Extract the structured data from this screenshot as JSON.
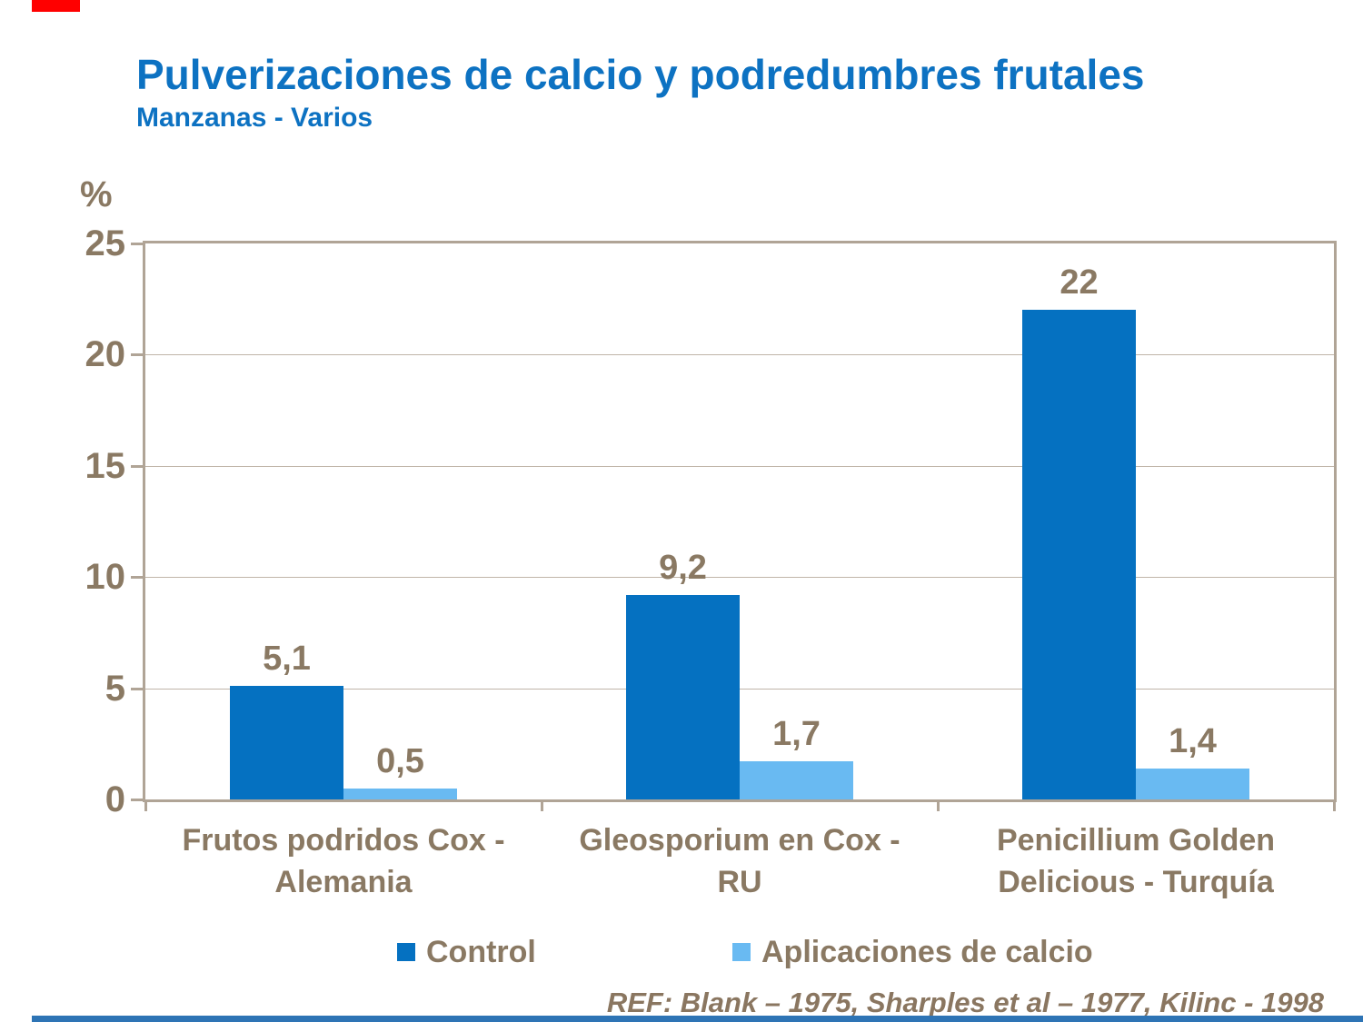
{
  "slide": {
    "title": "Pulverizaciones de calcio y podredumbres frutales",
    "subtitle": "Manzanas - Varios",
    "reference": "REF: Blank – 1975, Sharples et al – 1977, Kilinc - 1998"
  },
  "accents": {
    "top_bar_color": "#ff0000",
    "bottom_bar_color": "#2e74b5"
  },
  "chart_data": {
    "type": "bar",
    "title": "Pulverizaciones de calcio y podredumbres frutales",
    "subtitle": "Manzanas - Varios",
    "ylabel": "%",
    "xlabel": "",
    "ylim": [
      0,
      25
    ],
    "yticks": [
      0,
      5,
      10,
      15,
      20,
      25
    ],
    "grid": true,
    "legend_position": "bottom",
    "axis_text_color": "#8a7963",
    "axis_line_color": "#b0a496",
    "categories": [
      {
        "line1": "Frutos podridos Cox -",
        "line2": "Alemania"
      },
      {
        "line1": "Gleosporium en Cox -",
        "line2": "RU"
      },
      {
        "line1": "Penicillium Golden",
        "line2": "Delicious - Turquía"
      }
    ],
    "series": [
      {
        "name": "Control",
        "color": "#0571c1",
        "values": [
          5.1,
          9.2,
          22
        ],
        "labels": [
          "5,1",
          "9,2",
          "22"
        ]
      },
      {
        "name": "Aplicaciones de calcio",
        "color": "#69baf2",
        "values": [
          0.5,
          1.7,
          1.4
        ],
        "labels": [
          "0,5",
          "1,7",
          "1,4"
        ]
      }
    ]
  }
}
